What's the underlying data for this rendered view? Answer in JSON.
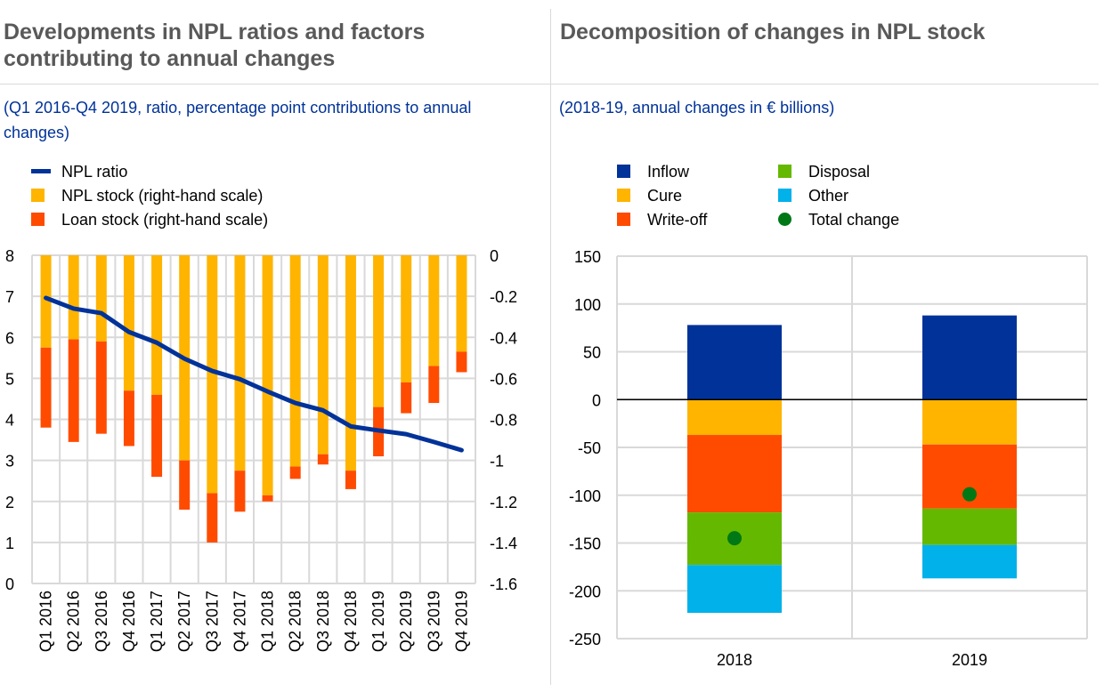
{
  "left_panel": {
    "title_line1": "Developments in NPL ratios and factors",
    "title_line2": "contributing to annual changes",
    "subtitle_line1": "(Q1 2016-Q4 2019, ratio, percentage point contributions to annual",
    "subtitle_line2": "changes)",
    "legend": [
      {
        "label": "NPL ratio",
        "color": "#003299",
        "marker": "line"
      },
      {
        "label": "NPL stock (right-hand scale)",
        "color": "#ffb400",
        "marker": "square"
      },
      {
        "label": "Loan stock (right-hand scale)",
        "color": "#ff4b00",
        "marker": "square"
      }
    ]
  },
  "right_panel": {
    "title": "Decomposition of changes in NPL stock",
    "subtitle": "(2018-19, annual changes in € billions)",
    "legend": [
      {
        "label": "Inflow",
        "color": "#003299",
        "marker": "square"
      },
      {
        "label": "Cure",
        "color": "#ffb400",
        "marker": "square"
      },
      {
        "label": "Write-off",
        "color": "#ff4b00",
        "marker": "square"
      },
      {
        "label": "Disposal",
        "color": "#65b800",
        "marker": "square"
      },
      {
        "label": "Other",
        "color": "#00b1ea",
        "marker": "square"
      },
      {
        "label": "Total change",
        "color": "#007816",
        "marker": "dot"
      }
    ]
  },
  "chart_data": [
    {
      "type": "bar+line",
      "title": "Developments in NPL ratios and factors contributing to annual changes",
      "categories": [
        "Q1 2016",
        "Q2 2016",
        "Q3 2016",
        "Q4 2016",
        "Q1 2017",
        "Q2 2017",
        "Q3 2017",
        "Q4 2017",
        "Q1 2018",
        "Q2 2018",
        "Q3 2018",
        "Q4 2018",
        "Q1 2019",
        "Q2 2019",
        "Q3 2019",
        "Q4 2019"
      ],
      "series": [
        {
          "name": "NPL ratio",
          "axis": "left",
          "kind": "line",
          "color": "#003299",
          "values": [
            6.96,
            6.7,
            6.59,
            6.13,
            5.87,
            5.48,
            5.18,
            4.98,
            4.68,
            4.4,
            4.22,
            3.83,
            3.73,
            3.64,
            3.45,
            3.25
          ]
        },
        {
          "name": "NPL stock (right-hand scale)",
          "axis": "right",
          "kind": "bar",
          "stacked": true,
          "color": "#ffb400",
          "values": [
            -0.45,
            -0.41,
            -0.42,
            -0.66,
            -0.68,
            -1.0,
            -1.16,
            -1.05,
            -1.17,
            -1.03,
            -0.97,
            -1.05,
            -0.74,
            -0.62,
            -0.54,
            -0.47
          ]
        },
        {
          "name": "Loan stock (right-hand scale)",
          "axis": "right",
          "kind": "bar",
          "stacked": true,
          "color": "#ff4b00",
          "values": [
            -0.39,
            -0.5,
            -0.45,
            -0.27,
            -0.4,
            -0.24,
            -0.24,
            -0.2,
            -0.03,
            -0.06,
            -0.05,
            -0.09,
            -0.24,
            -0.15,
            -0.18,
            -0.1
          ]
        }
      ],
      "left_axis": {
        "min": 0,
        "max": 8,
        "ticks": [
          "0",
          "1",
          "2",
          "3",
          "4",
          "5",
          "6",
          "7",
          "8"
        ]
      },
      "right_axis": {
        "min": -1.6,
        "max": 0,
        "ticks": [
          "0",
          "-0.2",
          "-0.4",
          "-0.6",
          "-0.8",
          "-1",
          "-1.2",
          "-1.4",
          "-1.6"
        ]
      },
      "xlabel": "",
      "ylabel": "",
      "grid": true,
      "legend_position": "top-left"
    },
    {
      "type": "bar",
      "stacked": true,
      "title": "Decomposition of changes in NPL stock",
      "categories": [
        "2018",
        "2019"
      ],
      "series": [
        {
          "name": "Inflow",
          "color": "#003299",
          "values": [
            78,
            88
          ]
        },
        {
          "name": "Cure",
          "color": "#ffb400",
          "values": [
            -37,
            -47
          ]
        },
        {
          "name": "Write-off",
          "color": "#ff4b00",
          "values": [
            -81,
            -67
          ]
        },
        {
          "name": "Disposal",
          "color": "#65b800",
          "values": [
            -55,
            -38
          ]
        },
        {
          "name": "Other",
          "color": "#00b1ea",
          "values": [
            -50,
            -35
          ]
        },
        {
          "name": "Total change",
          "color": "#007816",
          "kind": "dot",
          "values": [
            -145,
            -99
          ]
        }
      ],
      "y_axis": {
        "min": -250,
        "max": 150,
        "ticks": [
          "150",
          "100",
          "50",
          "0",
          "-50",
          "-100",
          "-150",
          "-200",
          "-250"
        ]
      },
      "xlabel": "",
      "ylabel": "",
      "grid": true,
      "legend_position": "top"
    }
  ]
}
